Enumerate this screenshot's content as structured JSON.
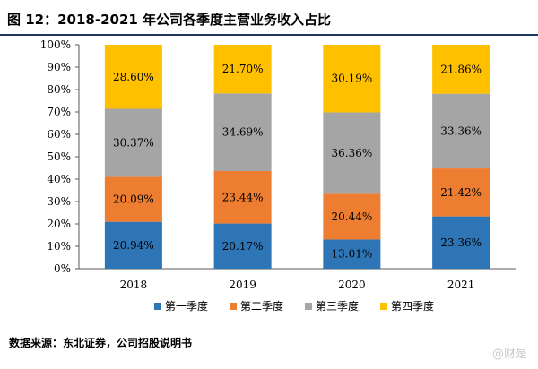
{
  "header": {
    "title": "图 12：2018-2021 年公司各季度主营业务收入占比"
  },
  "footer": {
    "source": "数据来源：东北证券，公司招股说明书",
    "watermark": "@财是"
  },
  "chart_data": {
    "type": "bar",
    "stacked": true,
    "categories": [
      "2018",
      "2019",
      "2020",
      "2021"
    ],
    "series": [
      {
        "name": "第一季度",
        "color": "#2e75b6",
        "values": [
          20.94,
          20.17,
          13.01,
          23.36
        ],
        "labels": [
          "20.94%",
          "20.17%",
          "13.01%",
          "23.36%"
        ]
      },
      {
        "name": "第二季度",
        "color": "#ed7d31",
        "values": [
          20.09,
          23.44,
          20.44,
          21.42
        ],
        "labels": [
          "20.09%",
          "23.44%",
          "20.44%",
          "21.42%"
        ]
      },
      {
        "name": "第三季度",
        "color": "#a5a5a5",
        "values": [
          30.37,
          34.69,
          36.36,
          33.36
        ],
        "labels": [
          "30.37%",
          "34.69%",
          "36.36%",
          "33.36%"
        ]
      },
      {
        "name": "第四季度",
        "color": "#ffc000",
        "values": [
          28.6,
          21.7,
          30.19,
          21.86
        ],
        "labels": [
          "28.60%",
          "21.70%",
          "30.19%",
          "21.86%"
        ]
      }
    ],
    "ylim": [
      0,
      100
    ],
    "yticks": [
      0,
      10,
      20,
      30,
      40,
      50,
      60,
      70,
      80,
      90,
      100
    ],
    "ytick_labels": [
      "0%",
      "10%",
      "20%",
      "30%",
      "40%",
      "50%",
      "60%",
      "70%",
      "80%",
      "90%",
      "100%"
    ],
    "legend_position": "bottom",
    "grid": false
  }
}
